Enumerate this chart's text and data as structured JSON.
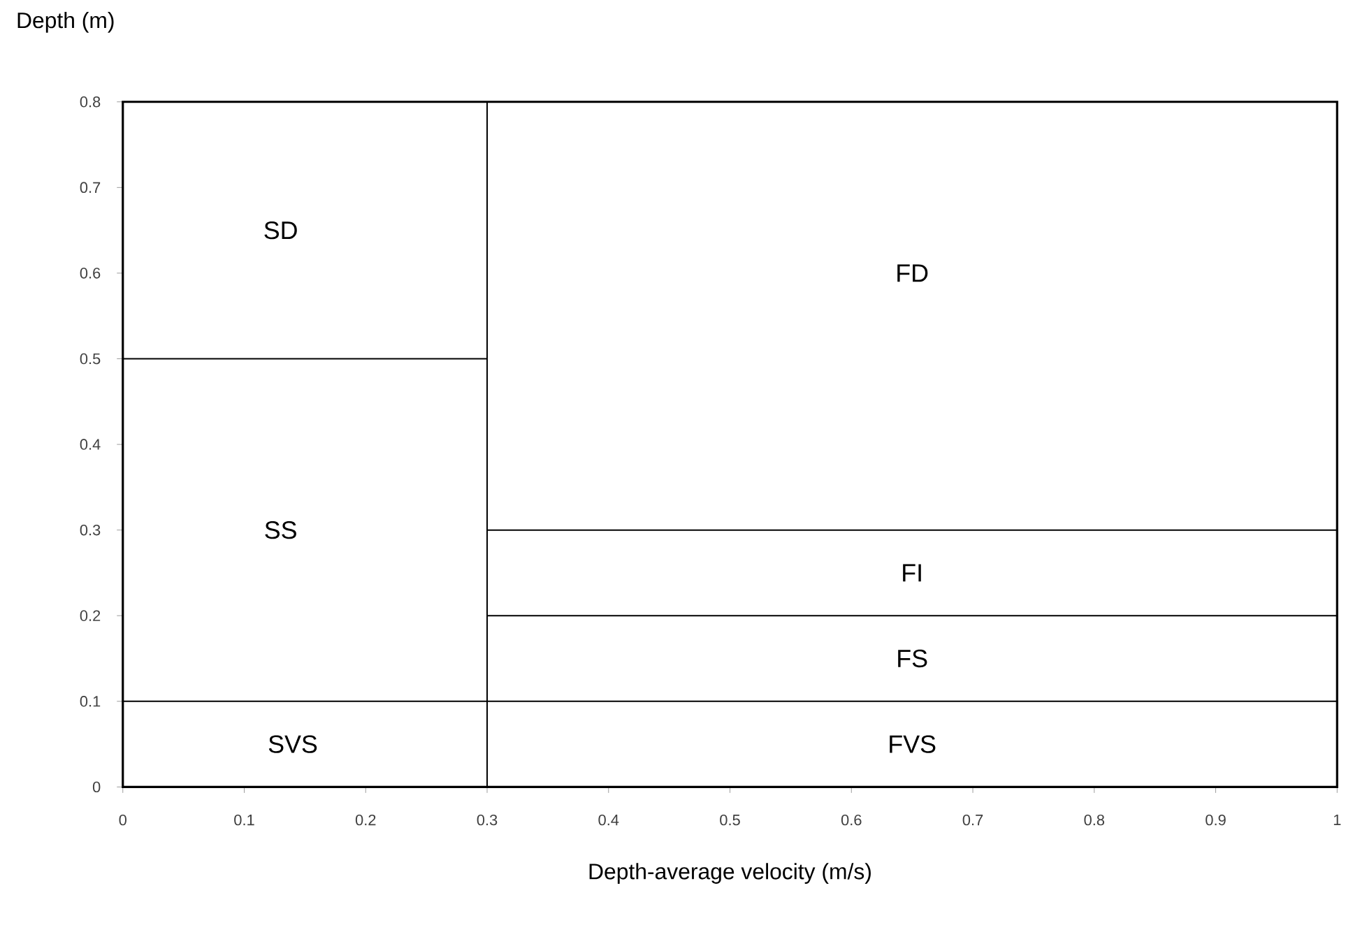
{
  "chart_data": {
    "type": "line",
    "xlabel": "Depth-average velocity (m/s)",
    "ylabel": "Depth (m)",
    "xlim": [
      0,
      1
    ],
    "ylim": [
      0,
      0.8
    ],
    "xticks": [
      0,
      0.1,
      0.2,
      0.3,
      0.4,
      0.5,
      0.6,
      0.7,
      0.8,
      0.9,
      1
    ],
    "yticks": [
      0,
      0.1,
      0.2,
      0.3,
      0.4,
      0.5,
      0.6,
      0.7,
      0.8
    ],
    "series": [
      {
        "color": "#000000",
        "x": [
          0.3,
          0.3
        ],
        "values": [
          0,
          0.8
        ]
      },
      {
        "color": "#000000",
        "x": [
          0,
          0.3
        ],
        "values": [
          0.5,
          0.5
        ]
      },
      {
        "color": "#000000",
        "x": [
          0,
          1
        ],
        "values": [
          0.1,
          0.1
        ]
      },
      {
        "color": "#000000",
        "x": [
          0.3,
          1
        ],
        "values": [
          0.2,
          0.2
        ]
      },
      {
        "color": "#000000",
        "x": [
          0.3,
          1
        ],
        "values": [
          0.3,
          0.3
        ]
      }
    ],
    "annotations": [
      "SD",
      "SS",
      "SVS",
      "FD",
      "FI",
      "FS",
      "FVS"
    ]
  }
}
